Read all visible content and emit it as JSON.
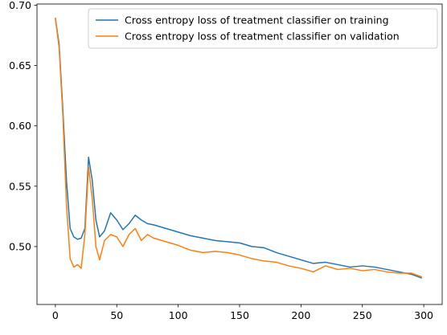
{
  "chart_data": {
    "type": "line",
    "title": "",
    "xlabel": "",
    "ylabel": "",
    "xlim": [
      -15,
      315
    ],
    "ylim": [
      0.452,
      0.701
    ],
    "x_ticks": [
      0,
      50,
      100,
      150,
      200,
      250,
      300
    ],
    "x_tick_labels": [
      "0",
      "50",
      "100",
      "150",
      "200",
      "250",
      "300"
    ],
    "y_ticks": [
      0.5,
      0.55,
      0.6,
      0.65,
      0.7
    ],
    "y_tick_labels": [
      "0.50",
      "0.55",
      "0.60",
      "0.65",
      "0.70"
    ],
    "grid": false,
    "legend_position": "upper-right",
    "series": [
      {
        "name": "Cross entropy loss of treatment classifier on training",
        "color": "#1f77b4",
        "x": [
          0,
          3,
          6,
          9,
          12,
          15,
          18,
          21,
          24,
          27,
          30,
          33,
          36,
          40,
          45,
          50,
          55,
          60,
          65,
          70,
          75,
          80,
          90,
          100,
          110,
          120,
          130,
          140,
          150,
          160,
          170,
          180,
          190,
          200,
          210,
          220,
          230,
          240,
          250,
          260,
          270,
          280,
          290,
          298
        ],
        "y": [
          0.689,
          0.668,
          0.615,
          0.555,
          0.515,
          0.508,
          0.506,
          0.507,
          0.515,
          0.574,
          0.555,
          0.522,
          0.508,
          0.513,
          0.528,
          0.522,
          0.514,
          0.519,
          0.526,
          0.522,
          0.519,
          0.518,
          0.515,
          0.512,
          0.509,
          0.507,
          0.505,
          0.504,
          0.503,
          0.5,
          0.499,
          0.495,
          0.492,
          0.489,
          0.486,
          0.487,
          0.485,
          0.483,
          0.484,
          0.483,
          0.481,
          0.479,
          0.477,
          0.474
        ]
      },
      {
        "name": "Cross entropy loss of treatment classifier on validation",
        "color": "#ff7f0e",
        "x": [
          0,
          3,
          6,
          9,
          12,
          15,
          18,
          21,
          24,
          27,
          30,
          33,
          36,
          40,
          45,
          50,
          55,
          60,
          65,
          70,
          75,
          80,
          90,
          100,
          110,
          120,
          130,
          140,
          150,
          160,
          170,
          180,
          190,
          200,
          210,
          220,
          230,
          240,
          250,
          260,
          270,
          280,
          290,
          298
        ],
        "y": [
          0.689,
          0.665,
          0.61,
          0.535,
          0.49,
          0.483,
          0.485,
          0.482,
          0.51,
          0.566,
          0.54,
          0.5,
          0.489,
          0.505,
          0.51,
          0.508,
          0.5,
          0.51,
          0.515,
          0.505,
          0.51,
          0.507,
          0.504,
          0.501,
          0.497,
          0.495,
          0.496,
          0.495,
          0.493,
          0.49,
          0.488,
          0.487,
          0.484,
          0.482,
          0.479,
          0.484,
          0.481,
          0.482,
          0.48,
          0.481,
          0.479,
          0.478,
          0.478,
          0.475
        ]
      }
    ]
  }
}
